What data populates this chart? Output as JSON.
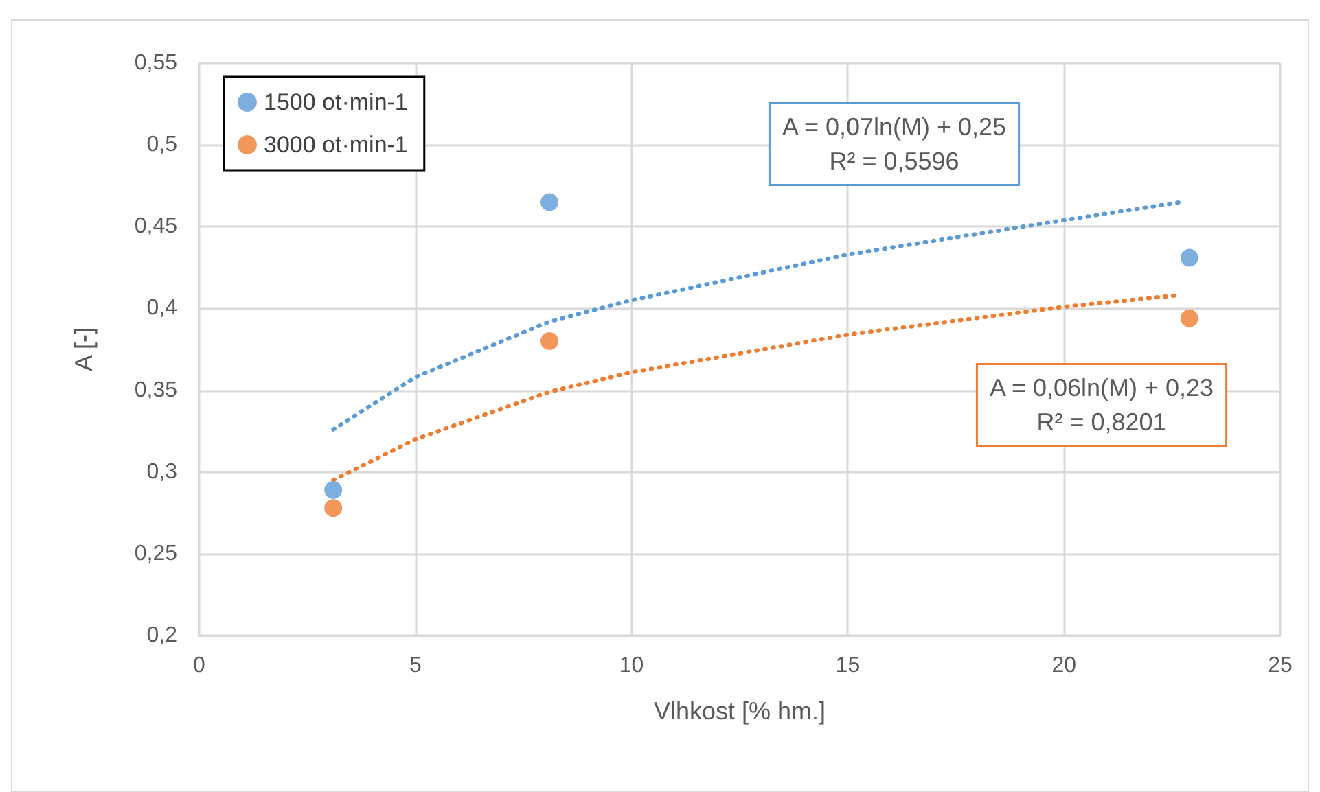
{
  "chart_data": {
    "type": "scatter",
    "xlabel": "Vlhkost [% hm.]",
    "ylabel": "A [-]",
    "xlim": [
      0,
      25
    ],
    "xticks": [
      0,
      5,
      10,
      15,
      20,
      25
    ],
    "ylim": [
      0.2,
      0.55
    ],
    "yticks": [
      {
        "value": 0.2,
        "label": "0,2"
      },
      {
        "value": 0.25,
        "label": "0,25"
      },
      {
        "value": 0.3,
        "label": "0,3"
      },
      {
        "value": 0.35,
        "label": "0,35"
      },
      {
        "value": 0.4,
        "label": "0,4"
      },
      {
        "value": 0.45,
        "label": "0,45"
      },
      {
        "value": 0.5,
        "label": "0,5"
      },
      {
        "value": 0.55,
        "label": "0,55"
      }
    ],
    "grid": true,
    "legend": "top left",
    "marker": "circle",
    "series": [
      {
        "name": "1500 ot·min-1",
        "color": "#5b9bd5",
        "x": [
          3.1,
          8.1,
          22.9
        ],
        "values": [
          0.289,
          0.465,
          0.431
        ]
      },
      {
        "name": "3000 ot·min-1",
        "color": "#ed7d31",
        "x": [
          3.1,
          8.1,
          22.9
        ],
        "values": [
          0.278,
          0.38,
          0.394
        ]
      },
      {
        "type": "line",
        "color": "#5b9bd5",
        "line_style": "dotted",
        "marker": "none",
        "x": [
          3.1,
          5,
          8.1,
          10,
          15,
          20,
          22.7
        ],
        "values": [
          0.326,
          0.358,
          0.392,
          0.405,
          0.433,
          0.454,
          0.465
        ]
      },
      {
        "type": "line",
        "color": "#ed7d31",
        "line_style": "dotted",
        "marker": "none",
        "x": [
          3.1,
          5,
          8.1,
          10,
          15,
          20,
          22.6
        ],
        "values": [
          0.295,
          0.32,
          0.349,
          0.361,
          0.384,
          0.401,
          0.408
        ]
      }
    ],
    "annotations": [
      "A = 0,07ln(M) + 0,25\nR² = 0,5596",
      "A = 0,06ln(M) + 0,23\nR² = 0,8201"
    ]
  }
}
